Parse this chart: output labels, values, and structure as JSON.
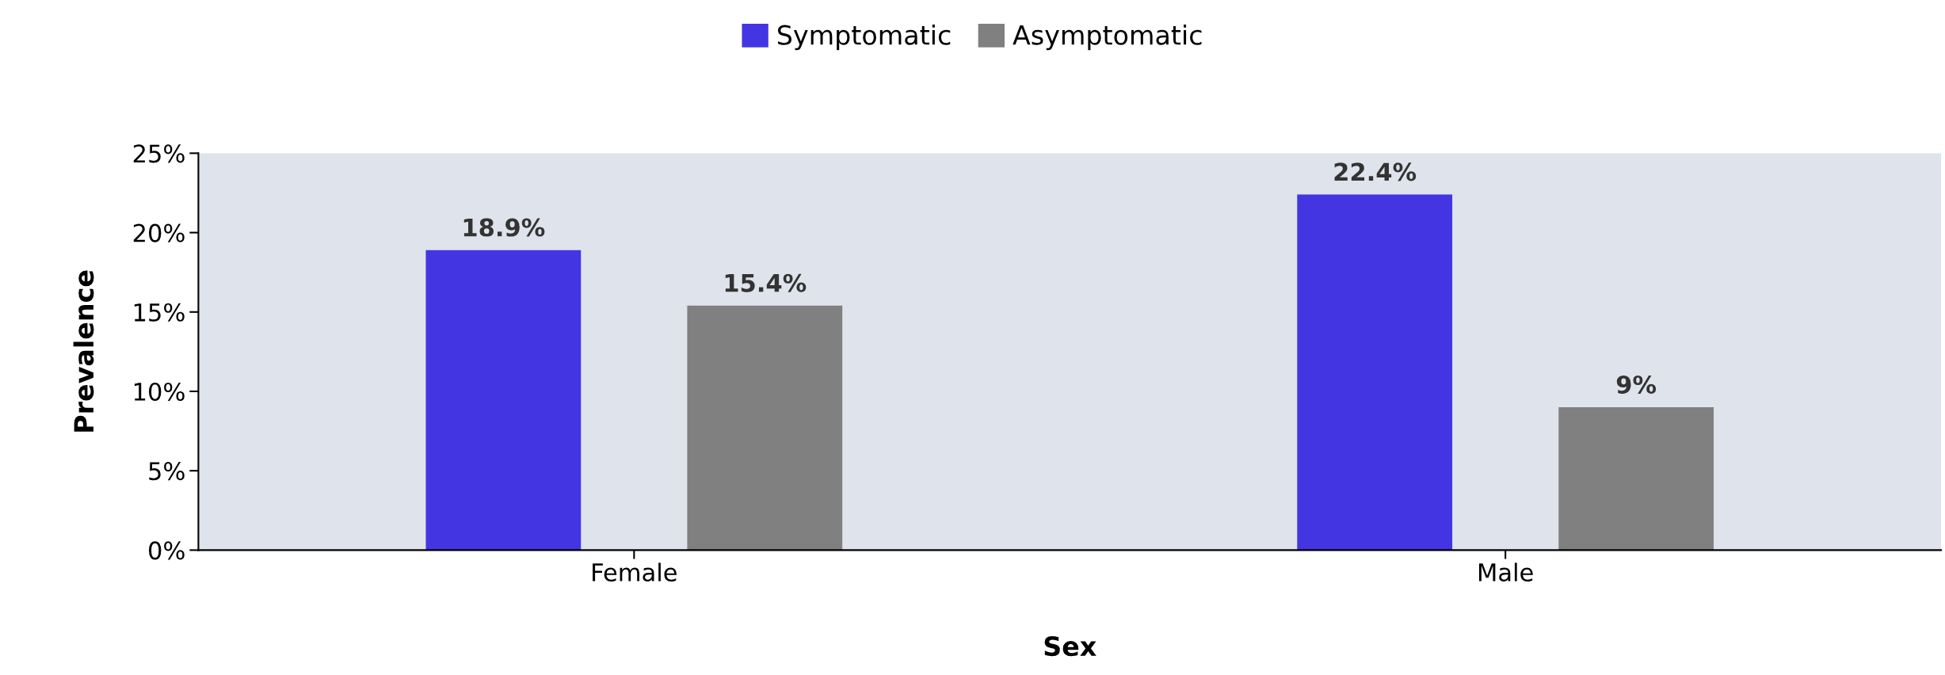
{
  "chart_data": {
    "type": "bar",
    "xlabel": "Sex",
    "ylabel": "Prevalence",
    "categories": [
      "Female",
      "Male"
    ],
    "series": [
      {
        "name": "Symptomatic",
        "color": "#4336e2",
        "values": [
          18.9,
          22.4
        ],
        "value_labels": [
          "18.9%",
          "22.4%"
        ]
      },
      {
        "name": "Asymptomatic",
        "color": "#808080",
        "values": [
          15.4,
          9
        ],
        "value_labels": [
          "15.4%",
          "9%"
        ]
      }
    ],
    "ylim": [
      0,
      25
    ],
    "yticks": [
      {
        "value": 0,
        "label": "0%"
      },
      {
        "value": 5,
        "label": "5%"
      },
      {
        "value": 10,
        "label": "10%"
      },
      {
        "value": 15,
        "label": "15%"
      },
      {
        "value": 20,
        "label": "20%"
      },
      {
        "value": 25,
        "label": "25%"
      }
    ],
    "grid": false,
    "legend": "top"
  }
}
